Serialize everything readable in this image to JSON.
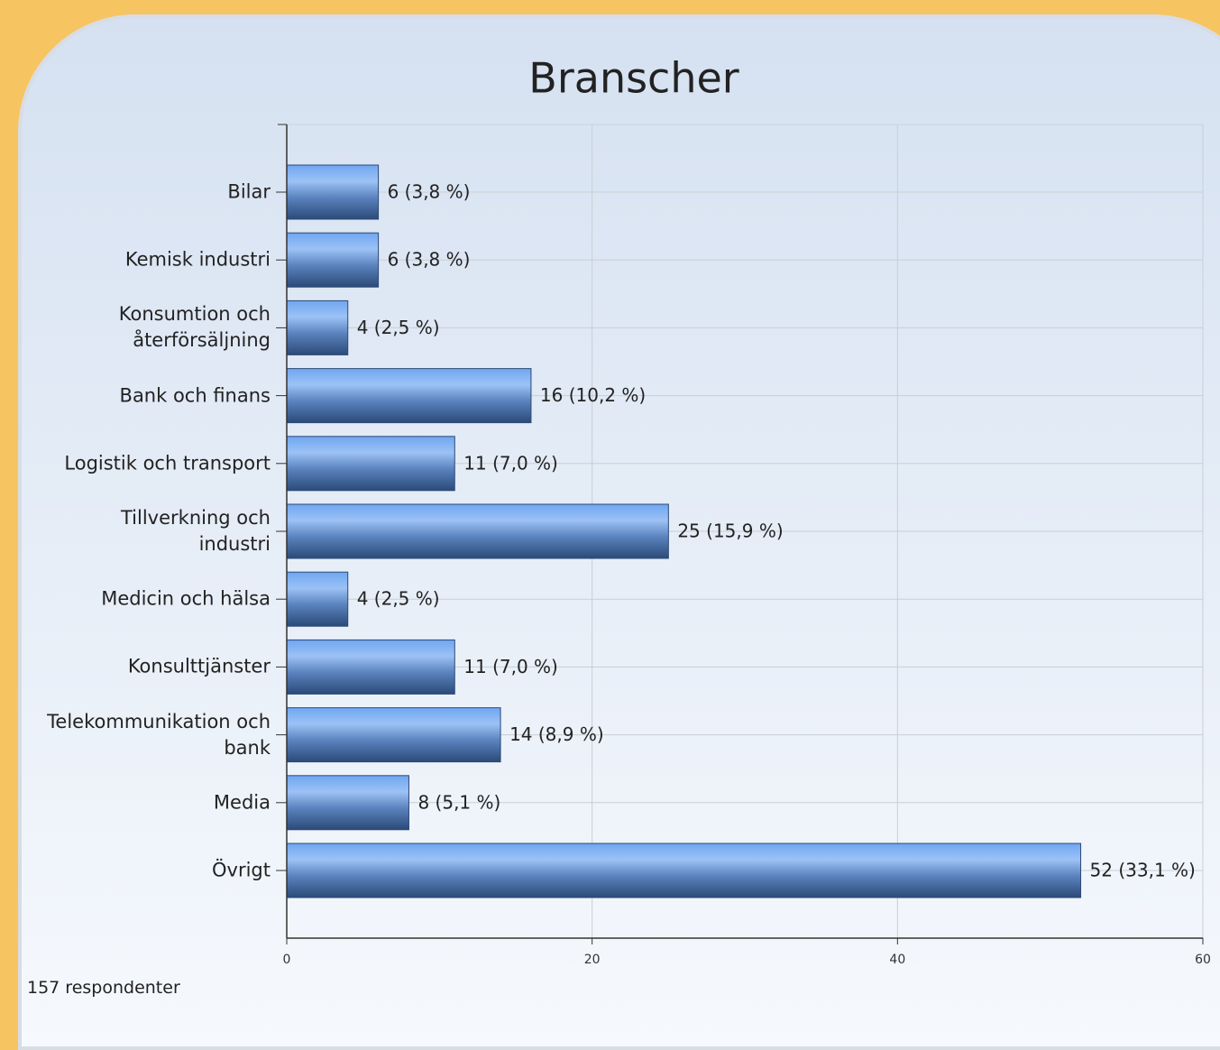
{
  "chart_data": {
    "type": "bar",
    "orientation": "horizontal",
    "title": "Branscher",
    "categories": [
      "Bilar",
      "Kemisk industri",
      "Konsumtion och återförsäljning",
      "Bank och finans",
      "Logistik och transport",
      "Tillverkning och industri",
      "Medicin och hälsa",
      "Konsulttjänster",
      "Telekommunikation och bank",
      "Media",
      "Övrigt"
    ],
    "values": [
      6,
      6,
      4,
      16,
      11,
      25,
      4,
      11,
      14,
      8,
      52
    ],
    "value_labels": [
      "6 (3,8 %)",
      "6 (3,8 %)",
      "4 (2,5 %)",
      "16 (10,2 %)",
      "11 (7,0 %)",
      "25 (15,9 %)",
      "4 (2,5 %)",
      "11 (7,0 %)",
      "14 (8,9 %)",
      "8 (5,1 %)",
      "52 (33,1 %)"
    ],
    "color": "#4a78c0",
    "xlim": [
      0,
      60
    ],
    "xticks": [
      0,
      20,
      40,
      60
    ],
    "grid": true,
    "footnote": "157 respondenter"
  }
}
